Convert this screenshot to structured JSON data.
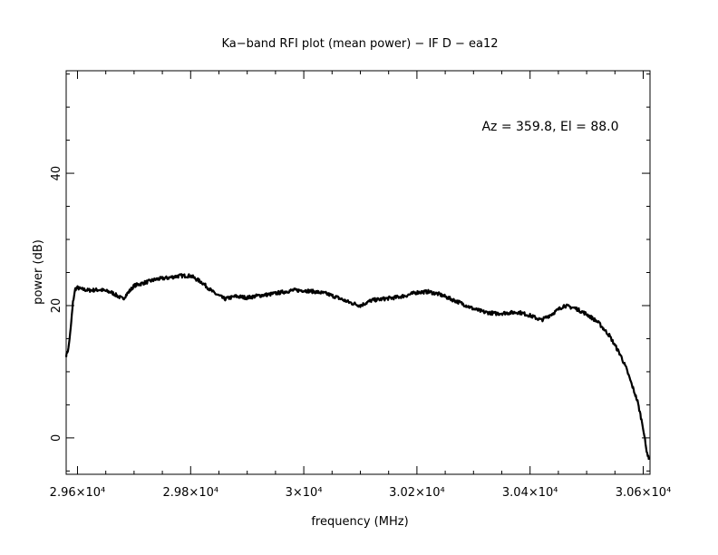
{
  "chart_data": {
    "type": "line",
    "title": "Ka−band RFI plot (mean power) − IF D − ea12",
    "xlabel": "frequency (MHz)",
    "ylabel": "power (dB)",
    "annotation": "Az = 359.8, El = 88.0",
    "xlim": [
      29580,
      30612
    ],
    "ylim": [
      -5.5,
      55.5
    ],
    "x_ticks": [
      {
        "value": 29600,
        "label": "2.96×10⁴"
      },
      {
        "value": 29800,
        "label": "2.98×10⁴"
      },
      {
        "value": 30000,
        "label": "3×10⁴"
      },
      {
        "value": 30200,
        "label": "3.02×10⁴"
      },
      {
        "value": 30400,
        "label": "3.04×10⁴"
      },
      {
        "value": 30600,
        "label": "3.06×10⁴"
      }
    ],
    "y_ticks": [
      {
        "value": 0,
        "label": "0"
      },
      {
        "value": 20,
        "label": "20"
      },
      {
        "value": 40,
        "label": "40"
      }
    ],
    "grid": false,
    "line_color": "#000000",
    "series": [
      {
        "x": [
          29580,
          29584,
          29588,
          29592,
          29596,
          29600,
          29606,
          29620,
          29640,
          29660,
          29680,
          29700,
          29720,
          29740,
          29760,
          29780,
          29800,
          29820,
          29840,
          29860,
          29880,
          29900,
          29920,
          29940,
          29960,
          29980,
          30000,
          30020,
          30040,
          30060,
          30080,
          30100,
          30120,
          30140,
          30160,
          30180,
          30200,
          30220,
          30240,
          30260,
          30280,
          30300,
          30320,
          30340,
          30360,
          30380,
          30400,
          30420,
          30440,
          30460,
          30480,
          30500,
          30520,
          30540,
          30560,
          30570,
          30580,
          30590,
          30600,
          30605,
          30610
        ],
        "y": [
          12.5,
          13.5,
          16.5,
          20.5,
          22.5,
          22.7,
          22.5,
          22.3,
          22.4,
          22.0,
          21.0,
          23.0,
          23.5,
          24.0,
          24.2,
          24.5,
          24.5,
          23.5,
          22.0,
          21.0,
          21.4,
          21.2,
          21.5,
          21.7,
          22.0,
          22.3,
          22.3,
          22.1,
          21.8,
          21.2,
          20.5,
          20.0,
          20.8,
          21.0,
          21.2,
          21.5,
          22.0,
          22.1,
          21.7,
          21.0,
          20.3,
          19.5,
          19.0,
          18.8,
          18.9,
          19.0,
          18.5,
          17.8,
          18.8,
          20.0,
          19.6,
          18.7,
          17.5,
          15.5,
          12.5,
          10.5,
          8.0,
          5.5,
          1.5,
          -1.5,
          -3.3
        ]
      }
    ]
  }
}
